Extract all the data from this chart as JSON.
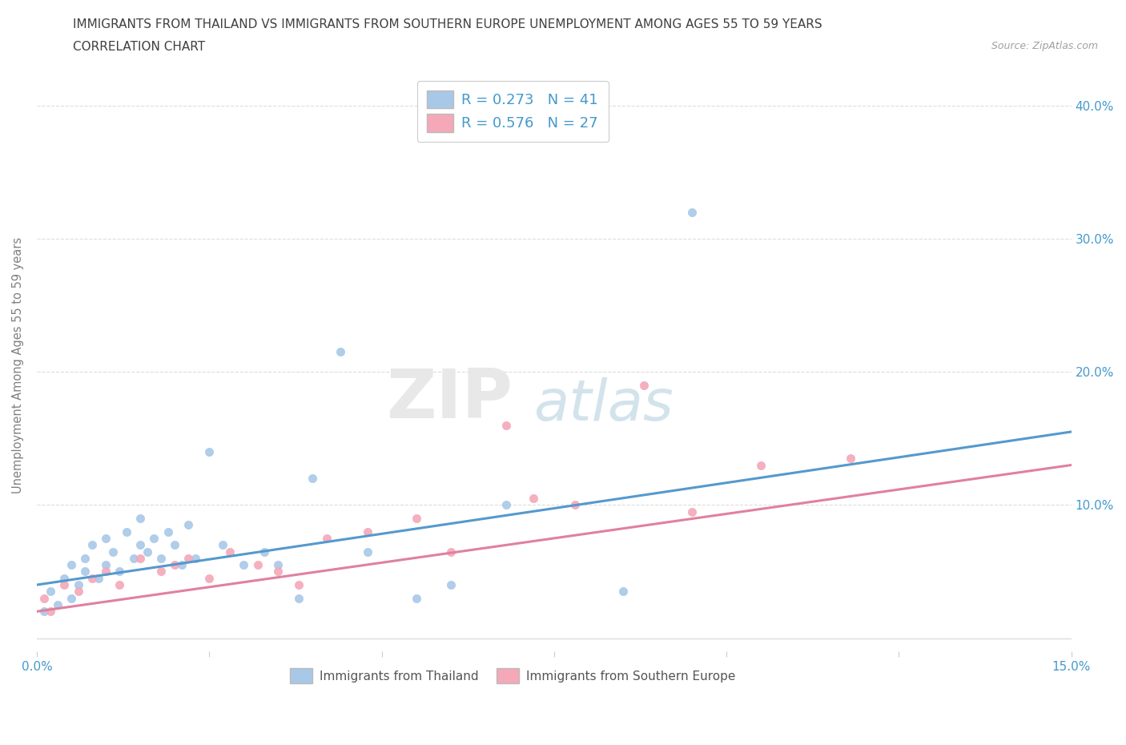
{
  "title_line1": "IMMIGRANTS FROM THAILAND VS IMMIGRANTS FROM SOUTHERN EUROPE UNEMPLOYMENT AMONG AGES 55 TO 59 YEARS",
  "title_line2": "CORRELATION CHART",
  "source_text": "Source: ZipAtlas.com",
  "ylabel": "Unemployment Among Ages 55 to 59 years",
  "xlim": [
    0.0,
    0.15
  ],
  "ylim": [
    -0.01,
    0.42
  ],
  "xticks": [
    0.0,
    0.025,
    0.05,
    0.075,
    0.1,
    0.125,
    0.15
  ],
  "yticks": [
    0.0,
    0.1,
    0.2,
    0.3,
    0.4
  ],
  "right_ytick_labels": [
    "10.0%",
    "20.0%",
    "30.0%",
    "40.0%"
  ],
  "right_yticks": [
    0.1,
    0.2,
    0.3,
    0.4
  ],
  "thailand_color": "#a8c8e8",
  "southern_europe_color": "#f4a8b8",
  "thailand_line_color": "#5599cc",
  "southern_europe_line_color": "#e080a0",
  "thailand_R": 0.273,
  "thailand_N": 41,
  "southern_europe_R": 0.576,
  "southern_europe_N": 27,
  "legend_label_thailand": "Immigrants from Thailand",
  "legend_label_southern_europe": "Immigrants from Southern Europe",
  "watermark_zip": "ZIP",
  "watermark_atlas": "atlas",
  "background_color": "#ffffff",
  "grid_color": "#dddddd",
  "title_color": "#404040",
  "axis_label_color": "#808080",
  "tick_color": "#4499cc",
  "thailand_scatter_x": [
    0.001,
    0.002,
    0.003,
    0.004,
    0.005,
    0.005,
    0.006,
    0.007,
    0.007,
    0.008,
    0.009,
    0.01,
    0.01,
    0.011,
    0.012,
    0.013,
    0.014,
    0.015,
    0.015,
    0.016,
    0.017,
    0.018,
    0.019,
    0.02,
    0.021,
    0.022,
    0.023,
    0.025,
    0.027,
    0.03,
    0.033,
    0.035,
    0.038,
    0.04,
    0.044,
    0.048,
    0.055,
    0.06,
    0.068,
    0.085,
    0.095
  ],
  "thailand_scatter_y": [
    0.02,
    0.035,
    0.025,
    0.045,
    0.03,
    0.055,
    0.04,
    0.05,
    0.06,
    0.07,
    0.045,
    0.055,
    0.075,
    0.065,
    0.05,
    0.08,
    0.06,
    0.07,
    0.09,
    0.065,
    0.075,
    0.06,
    0.08,
    0.07,
    0.055,
    0.085,
    0.06,
    0.14,
    0.07,
    0.055,
    0.065,
    0.055,
    0.03,
    0.12,
    0.215,
    0.065,
    0.03,
    0.04,
    0.1,
    0.035,
    0.32
  ],
  "southern_europe_scatter_x": [
    0.001,
    0.002,
    0.004,
    0.006,
    0.008,
    0.01,
    0.012,
    0.015,
    0.018,
    0.02,
    0.022,
    0.025,
    0.028,
    0.032,
    0.035,
    0.038,
    0.042,
    0.048,
    0.055,
    0.06,
    0.068,
    0.072,
    0.078,
    0.088,
    0.095,
    0.105,
    0.118
  ],
  "southern_europe_scatter_y": [
    0.03,
    0.02,
    0.04,
    0.035,
    0.045,
    0.05,
    0.04,
    0.06,
    0.05,
    0.055,
    0.06,
    0.045,
    0.065,
    0.055,
    0.05,
    0.04,
    0.075,
    0.08,
    0.09,
    0.065,
    0.16,
    0.105,
    0.1,
    0.19,
    0.095,
    0.13,
    0.135
  ],
  "thailand_trend_x": [
    0.0,
    0.15
  ],
  "thailand_trend_y": [
    0.04,
    0.155
  ],
  "southern_europe_trend_x": [
    0.0,
    0.15
  ],
  "southern_europe_trend_y": [
    0.02,
    0.13
  ],
  "legend_border_color": "#cccccc"
}
